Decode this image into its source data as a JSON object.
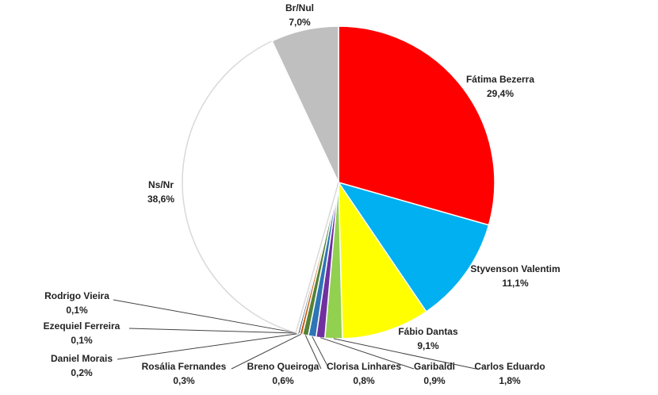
{
  "chart_data": {
    "type": "pie",
    "categories": [
      "Fátima Bezerra",
      "Styvenson Valentim",
      "Fábio Dantas",
      "Carlos Eduardo",
      "Garibaldi",
      "Clorisa Linhares",
      "Breno Queiroga",
      "Rosália Fernandes",
      "Daniel Morais",
      "Ezequiel Ferreira",
      "Rodrigo Vieira",
      "Ns/Nr",
      "Br/Nul"
    ],
    "values": [
      29.4,
      11.1,
      9.1,
      1.8,
      0.9,
      0.8,
      0.6,
      0.3,
      0.2,
      0.1,
      0.1,
      38.6,
      7.0
    ],
    "value_labels": [
      "29,4%",
      "11,1%",
      "9,1%",
      "1,8%",
      "0,9%",
      "0,8%",
      "0,6%",
      "0,3%",
      "0,2%",
      "0,1%",
      "0,1%",
      "38,6%",
      "7,0%"
    ],
    "colors": [
      "#ff0000",
      "#00b0f0",
      "#ffff00",
      "#92d050",
      "#7030a0",
      "#2e75b6",
      "#548235",
      "#c55a11",
      "#1f3864",
      "#ffc000",
      "#7f6000",
      "#ffffff",
      "#bfbfbf"
    ]
  }
}
